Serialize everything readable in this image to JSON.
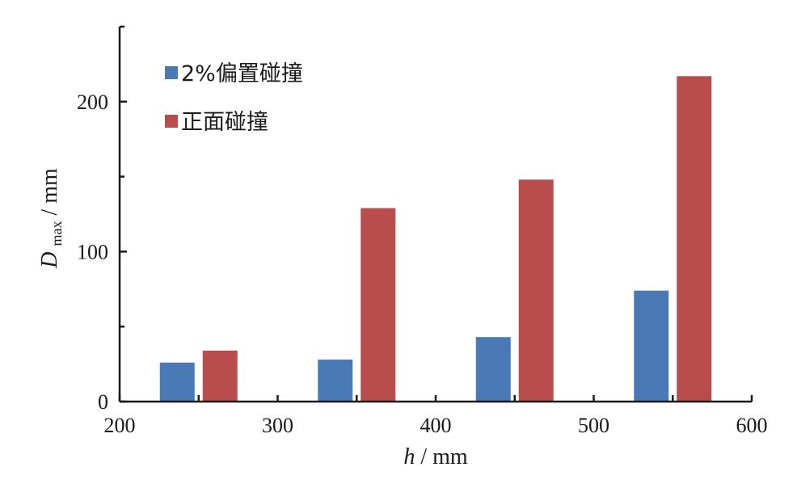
{
  "chart_data": {
    "type": "bar",
    "xaxis": {
      "var": "h",
      "unit": "mm",
      "range": [
        200,
        600
      ],
      "ticks": [
        "200",
        "300",
        "400",
        "500",
        "600"
      ]
    },
    "yaxis": {
      "var": "D",
      "sub": "max",
      "unit": "mm",
      "range": [
        0,
        250
      ],
      "ticks": [
        "0",
        "100",
        "200"
      ]
    },
    "groups": [
      250,
      350,
      450,
      550
    ],
    "series": [
      {
        "name": "2%偏置碰撞",
        "color": "#4a7ab5",
        "values": [
          26,
          28,
          43,
          74
        ]
      },
      {
        "name": "正面碰撞",
        "color": "#b94c4c",
        "values": [
          34,
          129,
          148,
          217
        ]
      }
    ],
    "legend": "top-left",
    "grid": false
  }
}
